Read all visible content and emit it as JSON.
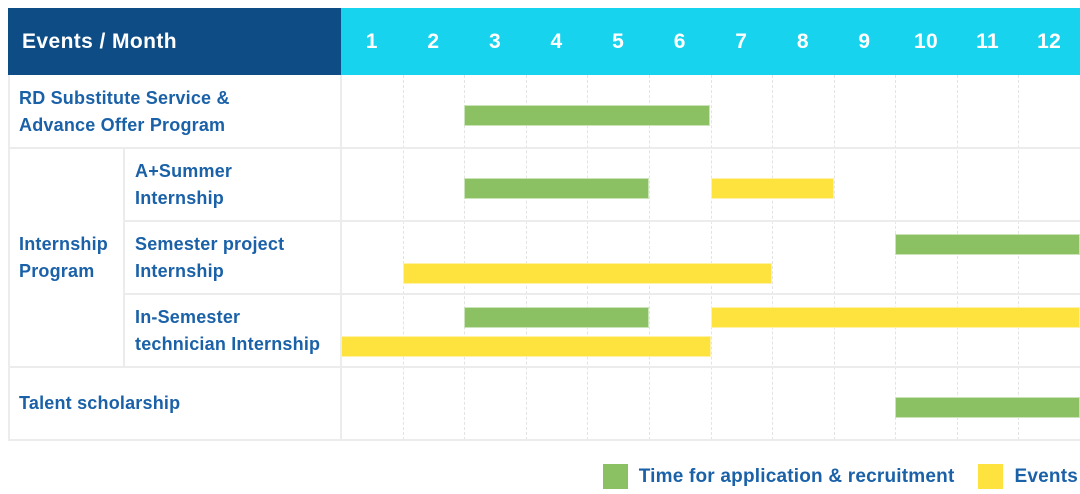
{
  "header": {
    "title": "Events / Month",
    "months": [
      "1",
      "2",
      "3",
      "4",
      "5",
      "6",
      "7",
      "8",
      "9",
      "10",
      "11",
      "12"
    ]
  },
  "legend": {
    "items": [
      {
        "label": "Time for application & recruitment",
        "color": "green"
      },
      {
        "label": "Events",
        "color": "yellow"
      }
    ]
  },
  "colors": {
    "header_navy": "#0d4c85",
    "months_cyan": "#18d3ed",
    "green": "#8cc163",
    "yellow": "#fee23e",
    "label_blue": "#1a61a8",
    "grid_gray": "#ececec"
  },
  "chart_data": {
    "type": "gantt",
    "title": "Events / Month",
    "x_unit": "month",
    "x_ticks": [
      1,
      2,
      3,
      4,
      5,
      6,
      7,
      8,
      9,
      10,
      11,
      12
    ],
    "series_legend": {
      "green": "Time for application & recruitment",
      "yellow": "Events"
    },
    "group_label": "Internship Program",
    "group_label_lines": [
      "Internship",
      "Program"
    ],
    "rows": [
      {
        "group": "",
        "label": "RD Substitute Service & Advance Offer Program",
        "label_lines": [
          "RD Substitute Service &",
          "Advance Offer Program"
        ],
        "bars": [
          {
            "color": "green",
            "start_month": 3,
            "end_month": 6,
            "lane": "center"
          }
        ]
      },
      {
        "group": "Internship Program",
        "label": "A+Summer Internship",
        "label_lines": [
          "A+Summer",
          "Internship"
        ],
        "bars": [
          {
            "color": "green",
            "start_month": 3,
            "end_month": 5,
            "lane": "center"
          },
          {
            "color": "yellow",
            "start_month": 7,
            "end_month": 8,
            "lane": "center"
          }
        ]
      },
      {
        "group": "Internship Program",
        "label": "Semester project Internship",
        "label_lines": [
          "Semester project",
          "Internship"
        ],
        "bars": [
          {
            "color": "green",
            "start_month": 10,
            "end_month": 12,
            "lane": "upper"
          },
          {
            "color": "yellow",
            "start_month": 2,
            "end_month": 7,
            "lane": "lower"
          }
        ]
      },
      {
        "group": "Internship Program",
        "label": "In-Semester technician Internship",
        "label_lines": [
          "In-Semester",
          "technician Internship"
        ],
        "bars": [
          {
            "color": "green",
            "start_month": 3,
            "end_month": 5,
            "lane": "upper"
          },
          {
            "color": "yellow",
            "start_month": 7,
            "end_month": 12,
            "lane": "upper"
          },
          {
            "color": "yellow",
            "start_month": 1,
            "end_month": 6,
            "lane": "lower"
          }
        ]
      },
      {
        "group": "",
        "label": "Talent scholarship",
        "label_lines": [
          "Talent scholarship"
        ],
        "bars": [
          {
            "color": "green",
            "start_month": 10,
            "end_month": 12,
            "lane": "center"
          }
        ]
      }
    ]
  }
}
